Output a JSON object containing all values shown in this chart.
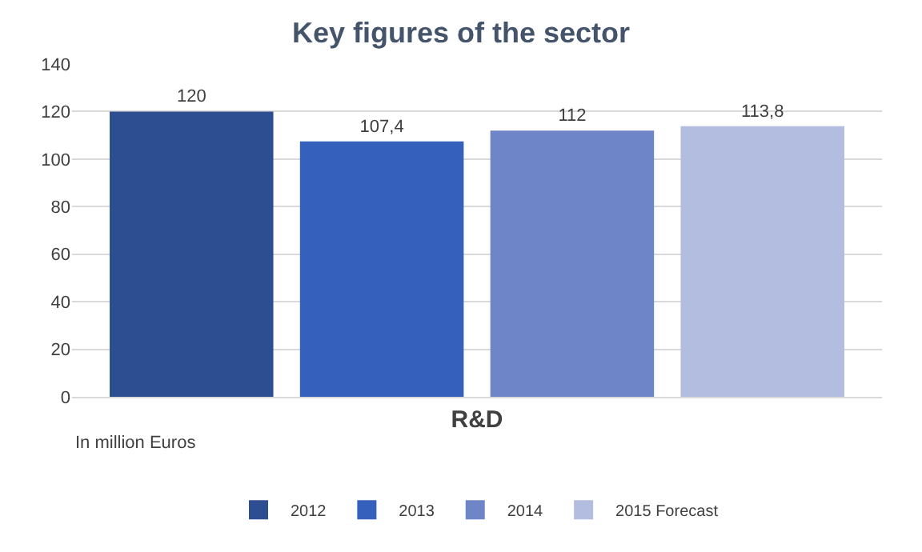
{
  "chart_data": {
    "type": "bar",
    "title": "Key figures of the sector",
    "categories": [
      "R&D"
    ],
    "series": [
      {
        "name": "2012",
        "color": "#2d4f92",
        "values": [
          120
        ],
        "value_labels": [
          "120"
        ]
      },
      {
        "name": "2013",
        "color": "#3561bd",
        "values": [
          107.4
        ],
        "value_labels": [
          "107,4"
        ]
      },
      {
        "name": "2014",
        "color": "#6e86c8",
        "values": [
          112
        ],
        "value_labels": [
          "112"
        ]
      },
      {
        "name": "2015 Forecast",
        "color": "#b3bddf",
        "values": [
          113.8
        ],
        "value_labels": [
          "113,8"
        ]
      }
    ],
    "ylim": [
      0,
      140
    ],
    "yticks": [
      0,
      20,
      40,
      60,
      80,
      100,
      120,
      140
    ],
    "grid": "y",
    "legend": "bottom",
    "annotations": [
      "In million Euros"
    ]
  }
}
